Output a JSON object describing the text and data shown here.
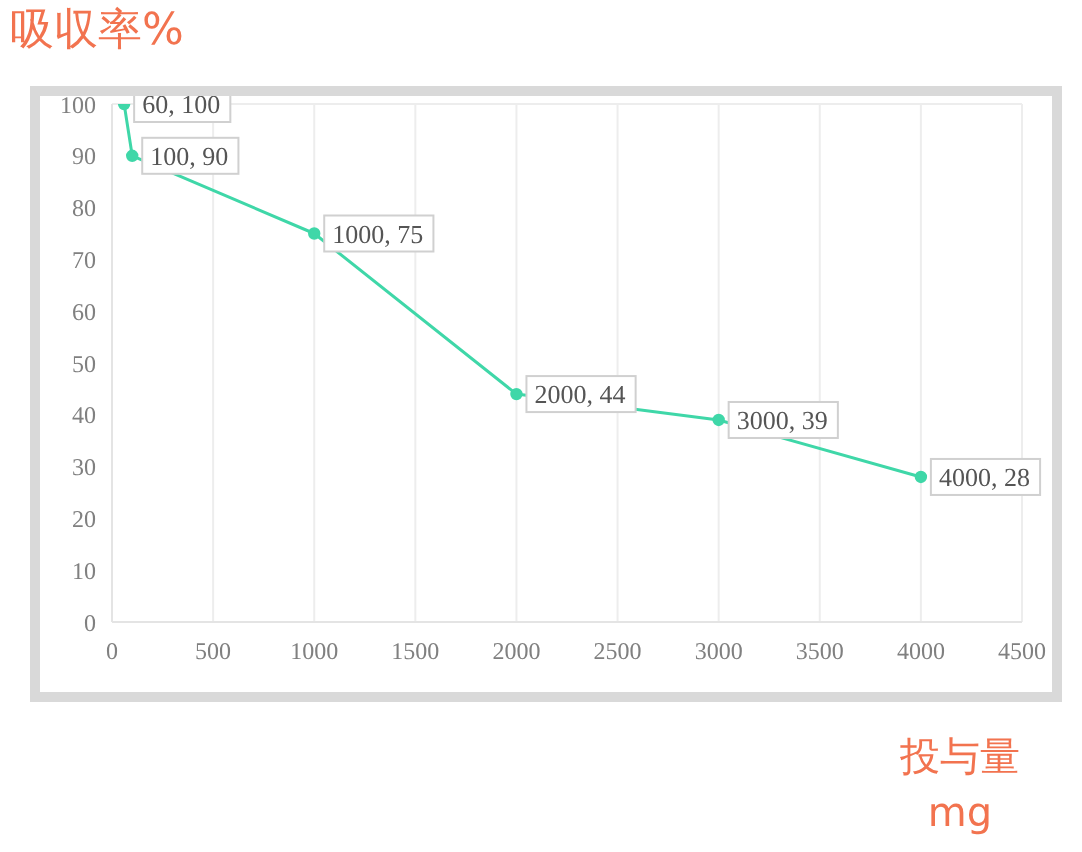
{
  "chart_data": {
    "type": "line",
    "ylabel": "吸収率%",
    "xlabel": "投与量\nmg",
    "x": [
      60,
      100,
      1000,
      2000,
      3000,
      4000
    ],
    "series": [
      {
        "color": "#3fd7a8",
        "values": [
          100,
          90,
          75,
          44,
          39,
          28
        ],
        "value_labels": [
          "60, 100",
          "100, 90",
          "1000, 75",
          "2000, 44",
          "3000, 39",
          "4000, 28"
        ]
      }
    ],
    "xlim": [
      0,
      4500
    ],
    "xticks": [
      0,
      500,
      1000,
      1500,
      2000,
      2500,
      3000,
      3500,
      4000,
      4500
    ],
    "ylim": [
      0,
      100
    ],
    "yticks": [
      0,
      10,
      20,
      30,
      40,
      50,
      60,
      70,
      80,
      90,
      100
    ],
    "grid": true,
    "marker": "circle"
  }
}
